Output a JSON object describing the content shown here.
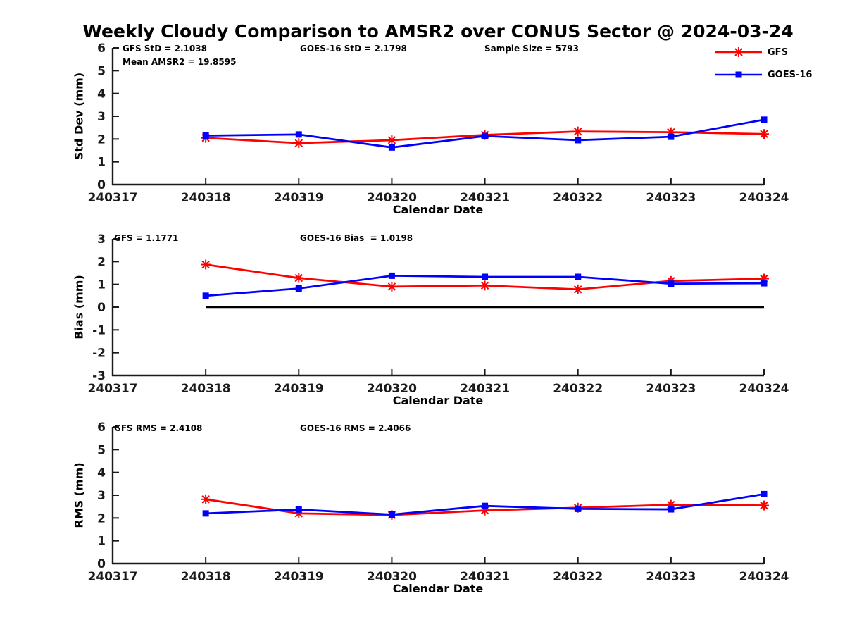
{
  "title": "Weekly Cloudy Comparison to AMSR2 over CONUS Sector @ 2024-03-24",
  "colors": {
    "gfs": "#ff0000",
    "goes16": "#0000ff",
    "axis": "#1a1a1a",
    "zero_line": "#000000"
  },
  "legend": {
    "items": [
      {
        "label": "GFS",
        "color": "#ff0000",
        "marker": "asterisk"
      },
      {
        "label": "GOES-16",
        "color": "#0000ff",
        "marker": "square"
      }
    ]
  },
  "subplots": [
    {
      "ylabel": "Std Dev (mm)",
      "xlabel": "Calendar Date",
      "annotations": {
        "gfs_std": "GFS StD = 2.1038",
        "mean_amsr2": "Mean AMSR2 = 19.8595",
        "goes_std": "GOES-16 StD = 2.1798",
        "sample_size": "Sample Size = 5793"
      }
    },
    {
      "ylabel": "Bias (mm)",
      "xlabel": "Calendar Date",
      "annotations": {
        "gfs_bias": "GFS = 1.1771",
        "goes_bias": "GOES-16 Bias  = 1.0198"
      }
    },
    {
      "ylabel": "RMS (mm)",
      "xlabel": "Calendar Date",
      "annotations": {
        "gfs_rms": "GFS RMS = 2.4108",
        "goes_rms": "GOES-16 RMS = 2.4066"
      }
    }
  ],
  "chart_data": [
    {
      "type": "line",
      "title": "Std Dev comparison",
      "xlabel": "Calendar Date",
      "ylabel": "Std Dev (mm)",
      "x_ticks": [
        "240317",
        "240318",
        "240319",
        "240320",
        "240321",
        "240322",
        "240323",
        "240324"
      ],
      "x": [
        "240318",
        "240319",
        "240320",
        "240321",
        "240322",
        "240323",
        "240324"
      ],
      "ylim": [
        0,
        6
      ],
      "yticks": [
        0,
        1,
        2,
        3,
        4,
        5,
        6
      ],
      "zero_line": false,
      "legend_position": "outside-top-right",
      "grid": false,
      "series": [
        {
          "name": "GFS",
          "color": "#ff0000",
          "marker": "asterisk",
          "values": [
            2.05,
            1.82,
            1.95,
            2.18,
            2.33,
            2.3,
            2.22
          ]
        },
        {
          "name": "GOES-16",
          "color": "#0000ff",
          "marker": "square",
          "values": [
            2.15,
            2.2,
            1.63,
            2.13,
            1.95,
            2.1,
            2.85
          ]
        }
      ]
    },
    {
      "type": "line",
      "title": "Bias comparison",
      "xlabel": "Calendar Date",
      "ylabel": "Bias (mm)",
      "x_ticks": [
        "240317",
        "240318",
        "240319",
        "240320",
        "240321",
        "240322",
        "240323",
        "240324"
      ],
      "x": [
        "240318",
        "240319",
        "240320",
        "240321",
        "240322",
        "240323",
        "240324"
      ],
      "ylim": [
        -3,
        3
      ],
      "yticks": [
        -3,
        -2,
        -1,
        0,
        1,
        2,
        3
      ],
      "zero_line": true,
      "grid": false,
      "series": [
        {
          "name": "GFS",
          "color": "#ff0000",
          "marker": "asterisk",
          "values": [
            1.87,
            1.28,
            0.9,
            0.95,
            0.78,
            1.15,
            1.25
          ]
        },
        {
          "name": "GOES-16",
          "color": "#0000ff",
          "marker": "square",
          "values": [
            0.5,
            0.82,
            1.38,
            1.33,
            1.33,
            1.03,
            1.05
          ]
        }
      ]
    },
    {
      "type": "line",
      "title": "RMS comparison",
      "xlabel": "Calendar Date",
      "ylabel": "RMS (mm)",
      "x_ticks": [
        "240317",
        "240318",
        "240319",
        "240320",
        "240321",
        "240322",
        "240323",
        "240324"
      ],
      "x": [
        "240318",
        "240319",
        "240320",
        "240321",
        "240322",
        "240323",
        "240324"
      ],
      "ylim": [
        0,
        6
      ],
      "yticks": [
        0,
        1,
        2,
        3,
        4,
        5,
        6
      ],
      "zero_line": false,
      "grid": false,
      "series": [
        {
          "name": "GFS",
          "color": "#ff0000",
          "marker": "asterisk",
          "values": [
            2.82,
            2.2,
            2.13,
            2.33,
            2.45,
            2.58,
            2.55
          ]
        },
        {
          "name": "GOES-16",
          "color": "#0000ff",
          "marker": "square",
          "values": [
            2.2,
            2.37,
            2.15,
            2.53,
            2.4,
            2.38,
            3.05
          ]
        }
      ]
    }
  ]
}
